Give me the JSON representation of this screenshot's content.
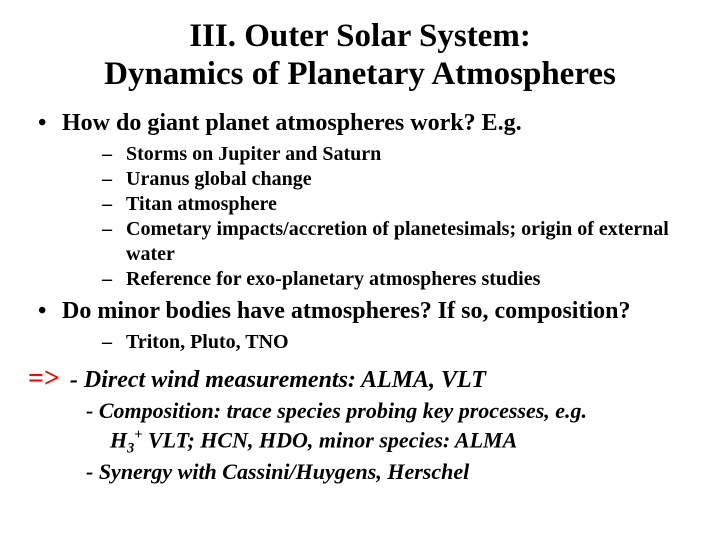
{
  "title_line1": "III. Outer Solar System:",
  "title_line2": "Dynamics of Planetary Atmospheres",
  "q1": "How do giant planet atmospheres work? E.g.",
  "q1_items": {
    "a": "Storms on Jupiter and Saturn",
    "b": "Uranus global change",
    "c": "Titan atmosphere",
    "d": "Cometary impacts/accretion of planetesimals; origin of external water",
    "e": "Reference for exo-planetary atmospheres studies"
  },
  "q2": "Do minor bodies have atmospheres? If so, composition?",
  "q2_items": {
    "a": "Triton, Pluto, TNO"
  },
  "arrow": "=>",
  "impl": {
    "a": "- Direct wind measurements: ALMA, VLT",
    "b": "- Composition: trace species probing key processes, e.g.",
    "c_pre": "H",
    "c_sub": "3",
    "c_sup": "+",
    "c_post": " VLT;  HCN, HDO, minor species: ALMA",
    "d": "- Synergy with Cassini/Huygens, Herschel"
  },
  "colors": {
    "text": "#000000",
    "arrow": "#ff0000",
    "background": "#ffffff"
  }
}
